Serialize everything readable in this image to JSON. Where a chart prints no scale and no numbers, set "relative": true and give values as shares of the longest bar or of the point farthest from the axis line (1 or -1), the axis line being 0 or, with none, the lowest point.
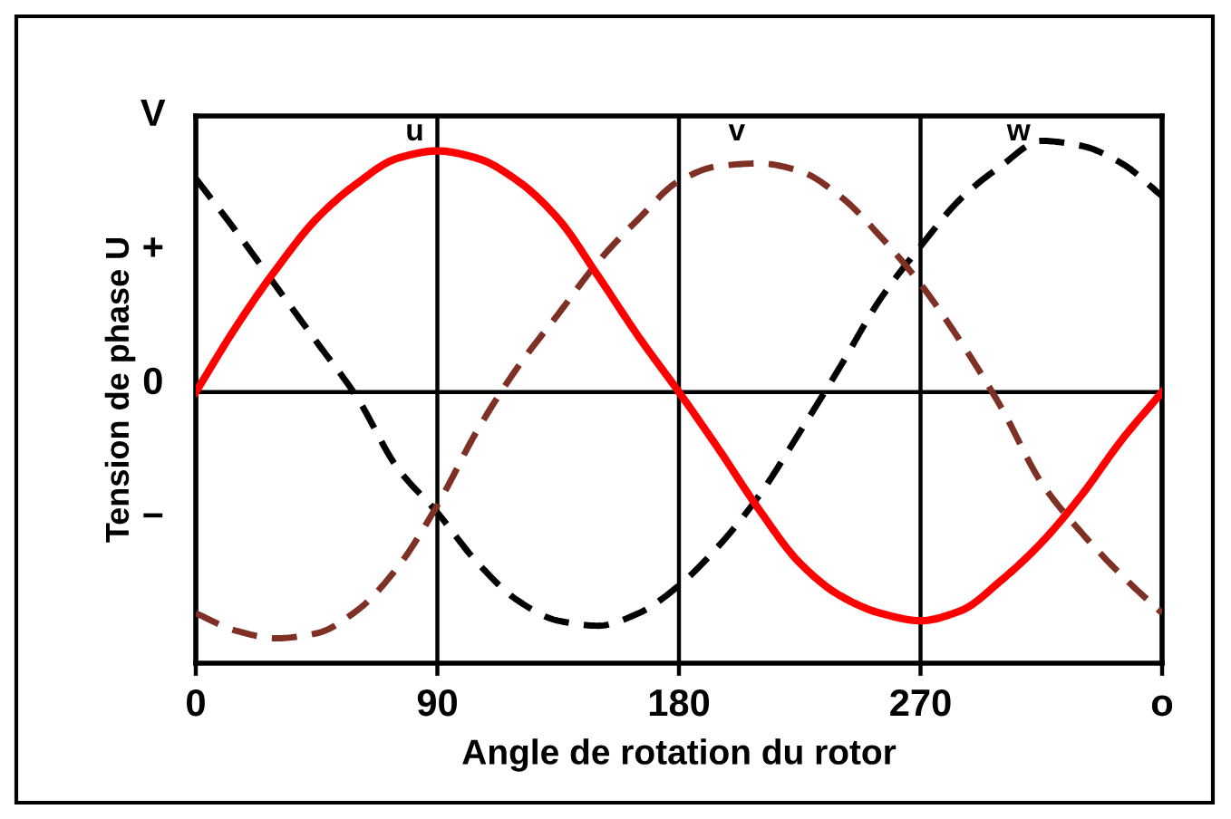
{
  "chart_data": {
    "type": "line",
    "xlabel": "Angle de rotation du rotor",
    "ylabel": "Tension de phase U",
    "x": [
      0,
      15,
      30,
      45,
      60,
      75,
      90,
      105,
      120,
      135,
      150,
      165,
      180,
      195,
      210,
      225,
      240,
      255,
      270,
      285,
      300,
      315,
      330,
      345,
      360
    ],
    "series": [
      {
        "name": "u",
        "color": "#ff0000",
        "line_style": "solid",
        "values": [
          0,
          0.26,
          0.49,
          0.69,
          0.83,
          0.93,
          0.96,
          0.93,
          0.84,
          0.69,
          0.46,
          0.22,
          0,
          -0.23,
          -0.47,
          -0.68,
          -0.81,
          -0.88,
          -0.91,
          -0.87,
          -0.75,
          -0.6,
          -0.41,
          -0.19,
          0
        ]
      },
      {
        "name": "v",
        "color": "#7e3025",
        "line_style": "dashed",
        "values": [
          -0.88,
          -0.95,
          -0.98,
          -0.96,
          -0.87,
          -0.7,
          -0.45,
          -0.15,
          0.1,
          0.31,
          0.52,
          0.69,
          0.84,
          0.9,
          0.91,
          0.88,
          0.78,
          0.62,
          0.43,
          0.2,
          -0.06,
          -0.36,
          -0.56,
          -0.73,
          -0.88
        ]
      },
      {
        "name": "w",
        "color": "#000000",
        "line_style": "dashed",
        "values": [
          0.85,
          0.64,
          0.42,
          0.2,
          -0.02,
          -0.3,
          -0.48,
          -0.68,
          -0.83,
          -0.91,
          -0.93,
          -0.88,
          -0.77,
          -0.61,
          -0.41,
          -0.16,
          0.1,
          0.37,
          0.58,
          0.77,
          0.9,
          1.0,
          0.98,
          0.91,
          0.78
        ]
      }
    ],
    "relative": true,
    "xlim": [
      0,
      360
    ],
    "xticks": [
      0,
      90,
      180,
      270,
      {
        "value": 360,
        "label": "o"
      }
    ],
    "annotations": [
      "V",
      "+",
      "0",
      "−"
    ],
    "grid": "x",
    "ref_lines": [
      {
        "axis": "y",
        "value": 0,
        "color": "#000000"
      }
    ]
  }
}
